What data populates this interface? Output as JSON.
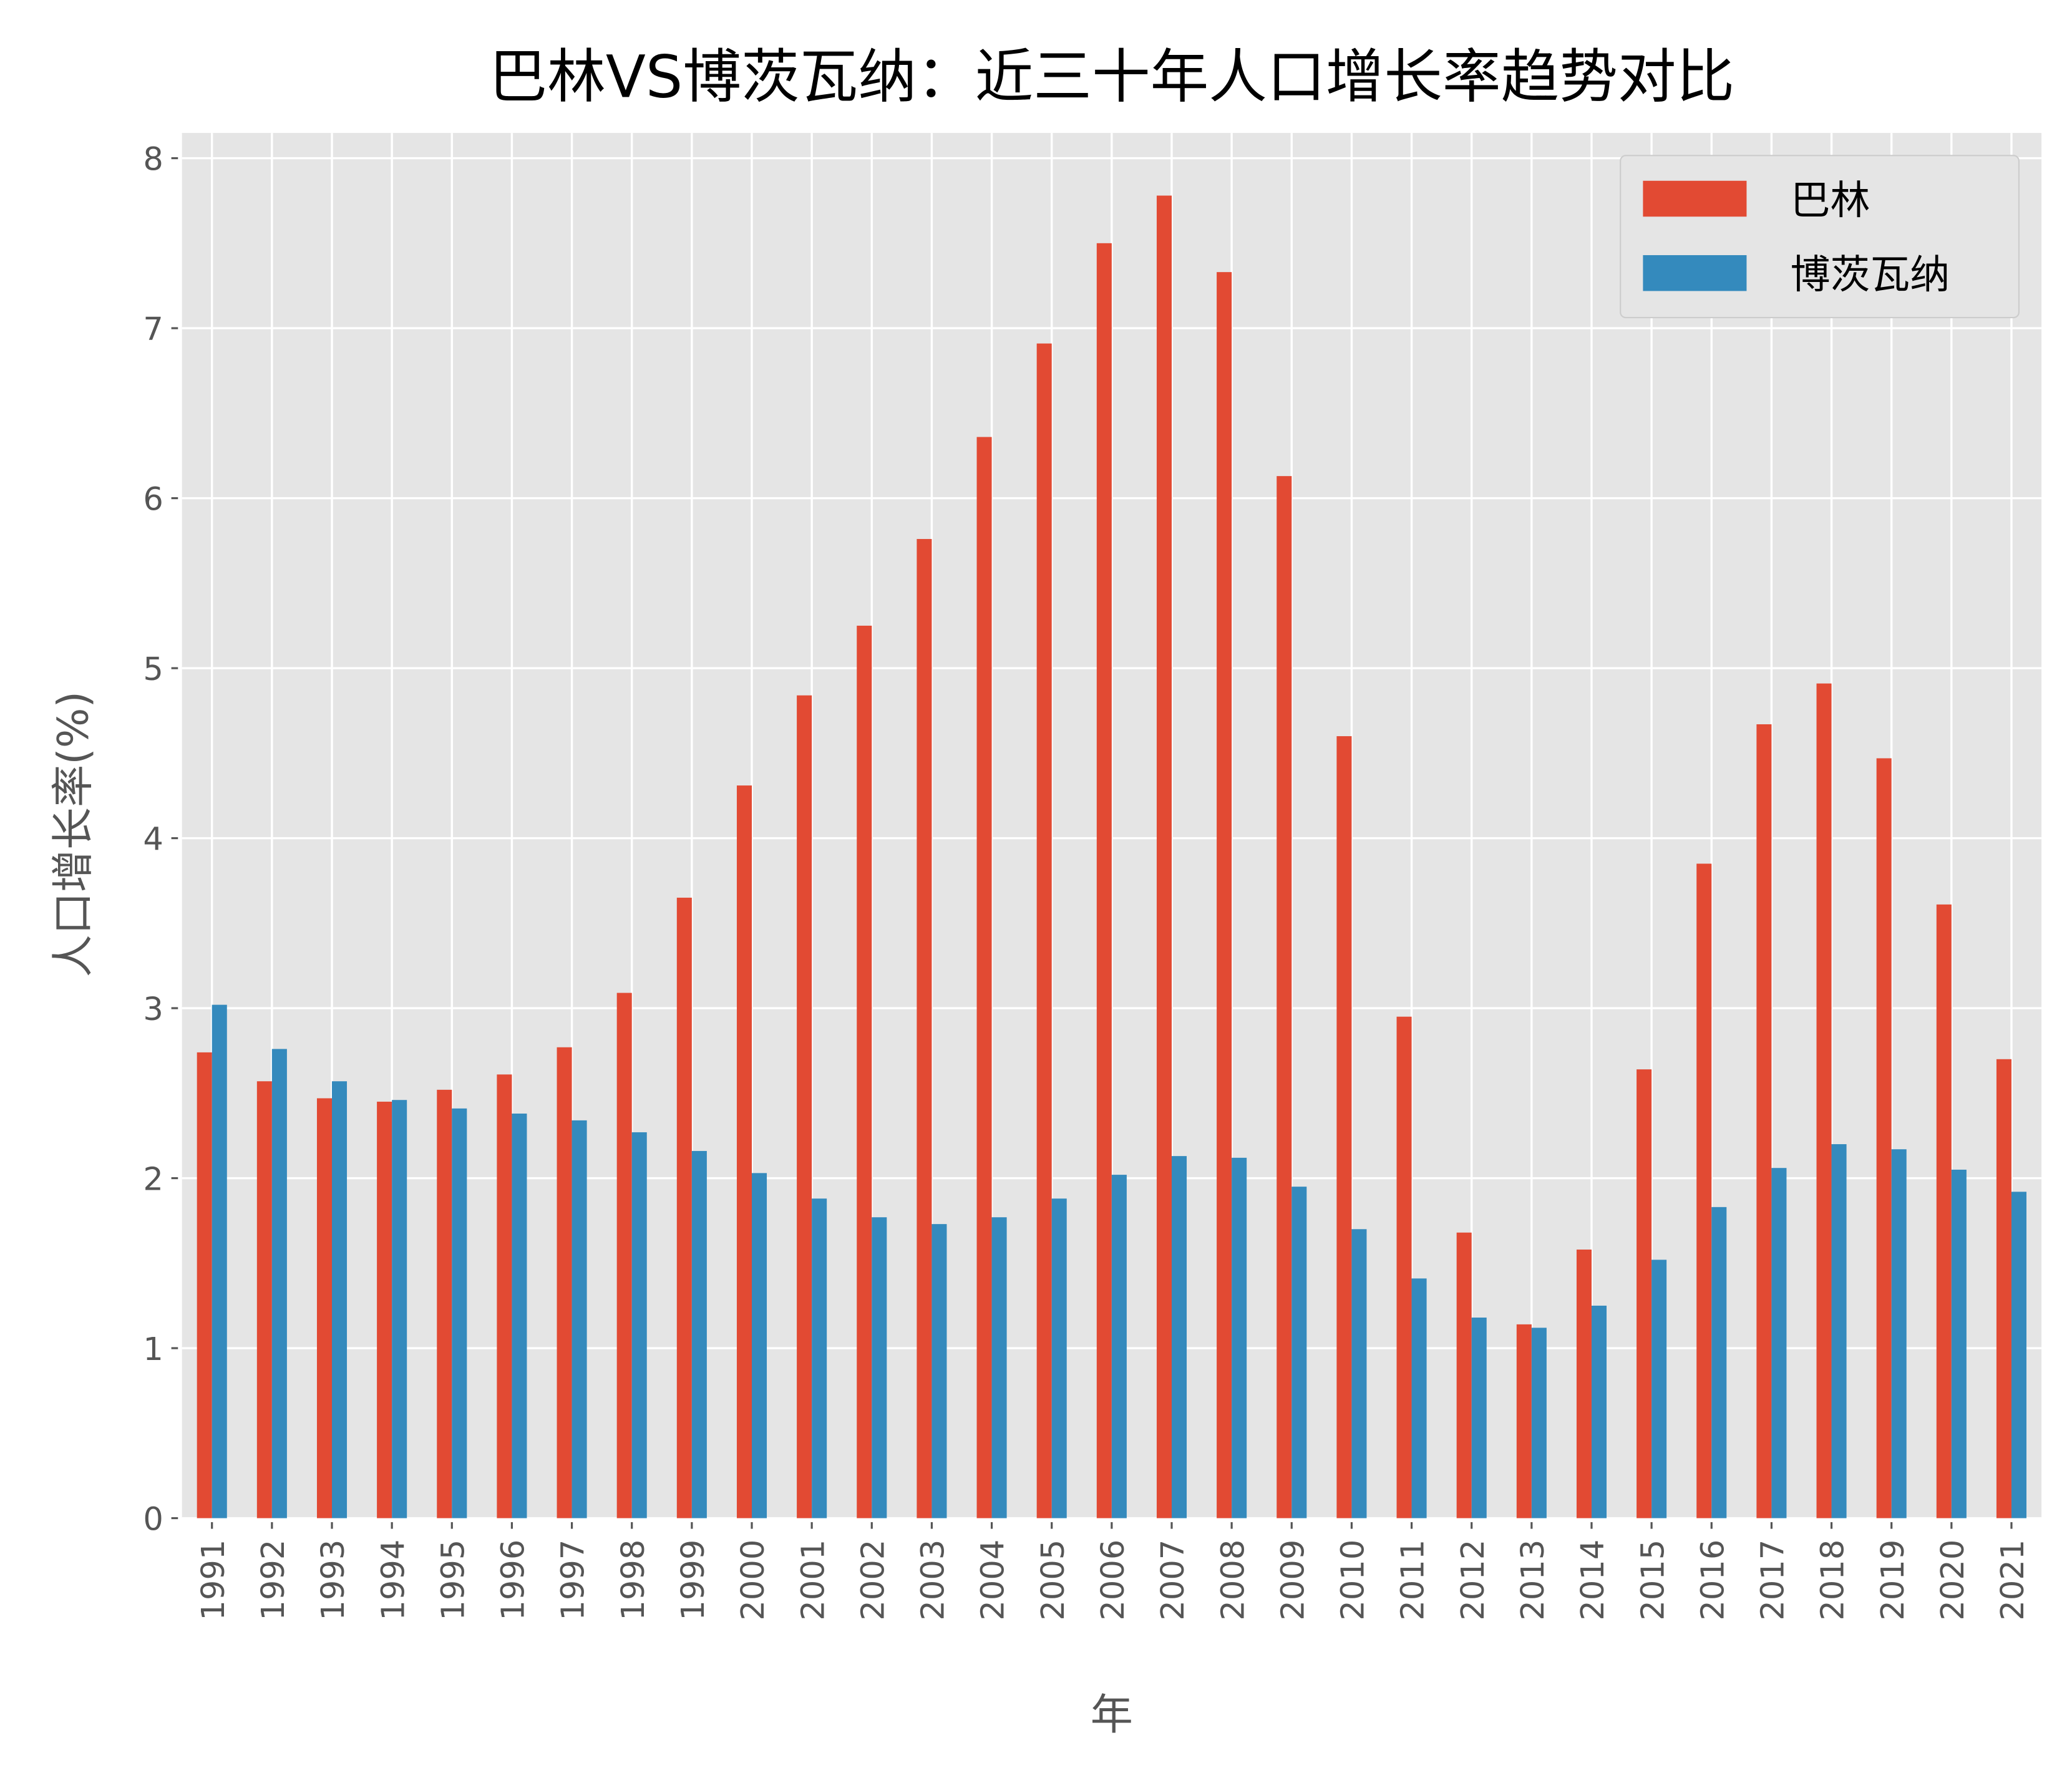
{
  "chart_data": {
    "type": "bar",
    "title": "巴林VS博茨瓦纳：近三十年人口增长率趋势对比",
    "xlabel": "年",
    "ylabel": "人口增长率(%)",
    "ylim": [
      0,
      8.15
    ],
    "yticks": [
      "0",
      "1",
      "2",
      "3",
      "4",
      "5",
      "6",
      "7",
      "8"
    ],
    "grid": true,
    "legend_position": "top-right",
    "categories": [
      "1991",
      "1992",
      "1993",
      "1994",
      "1995",
      "1996",
      "1997",
      "1998",
      "1999",
      "2000",
      "2001",
      "2002",
      "2003",
      "2004",
      "2005",
      "2006",
      "2007",
      "2008",
      "2009",
      "2010",
      "2011",
      "2012",
      "2013",
      "2014",
      "2015",
      "2016",
      "2017",
      "2018",
      "2019",
      "2020",
      "2021"
    ],
    "series": [
      {
        "name": "巴林",
        "color": "#E24A33",
        "values": [
          2.74,
          2.57,
          2.47,
          2.45,
          2.52,
          2.61,
          2.77,
          3.09,
          3.65,
          4.31,
          4.84,
          5.25,
          5.76,
          6.36,
          6.91,
          7.5,
          7.78,
          7.33,
          6.13,
          4.6,
          2.95,
          1.68,
          1.14,
          1.58,
          2.64,
          3.85,
          4.67,
          4.91,
          4.47,
          3.61,
          2.7
        ]
      },
      {
        "name": "博茨瓦纳",
        "color": "#348ABD",
        "values": [
          3.02,
          2.76,
          2.57,
          2.46,
          2.41,
          2.38,
          2.34,
          2.27,
          2.16,
          2.03,
          1.88,
          1.77,
          1.73,
          1.77,
          1.88,
          2.02,
          2.13,
          2.12,
          1.95,
          1.7,
          1.41,
          1.18,
          1.12,
          1.25,
          1.52,
          1.83,
          2.06,
          2.2,
          2.17,
          2.05,
          1.92
        ]
      }
    ],
    "background_color": "#E5E5E5"
  }
}
